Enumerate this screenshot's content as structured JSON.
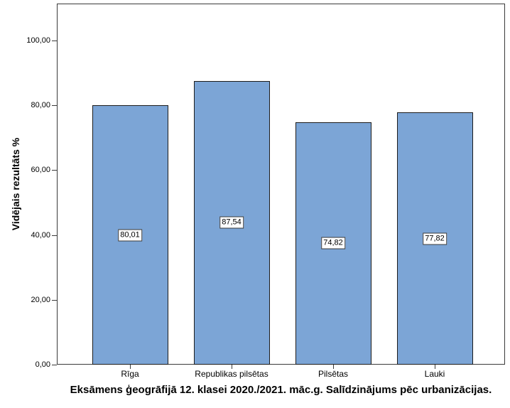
{
  "chart_data": {
    "type": "bar",
    "categories": [
      "Rīga",
      "Republikas pilsētas",
      "Pilsētas",
      "Lauki"
    ],
    "values": [
      80.01,
      87.54,
      74.82,
      77.82
    ],
    "value_labels": [
      "80,01",
      "87,54",
      "74,82",
      "77,82"
    ],
    "title": "Eksāmens ģeogrāfijā 12. klasei 2020./2021. māc.g. Salīdzinājums pēc urbanizācijas.",
    "xlabel": "",
    "ylabel": "Vidējais rezultāts %",
    "ylim": [
      0,
      100
    ],
    "yticks": [
      0,
      20,
      40,
      60,
      80,
      100
    ],
    "ytick_labels": [
      "0,00",
      "20,00",
      "40,00",
      "60,00",
      "80,00",
      "100,00"
    ],
    "grid": false,
    "legend": "none",
    "title_position": "bottom",
    "value_label_position": "bar-middle",
    "bar_fill_color": "#7CA5D6",
    "bar_border_color": "#1c1c1c",
    "axis_color": "#3a3a3a"
  }
}
